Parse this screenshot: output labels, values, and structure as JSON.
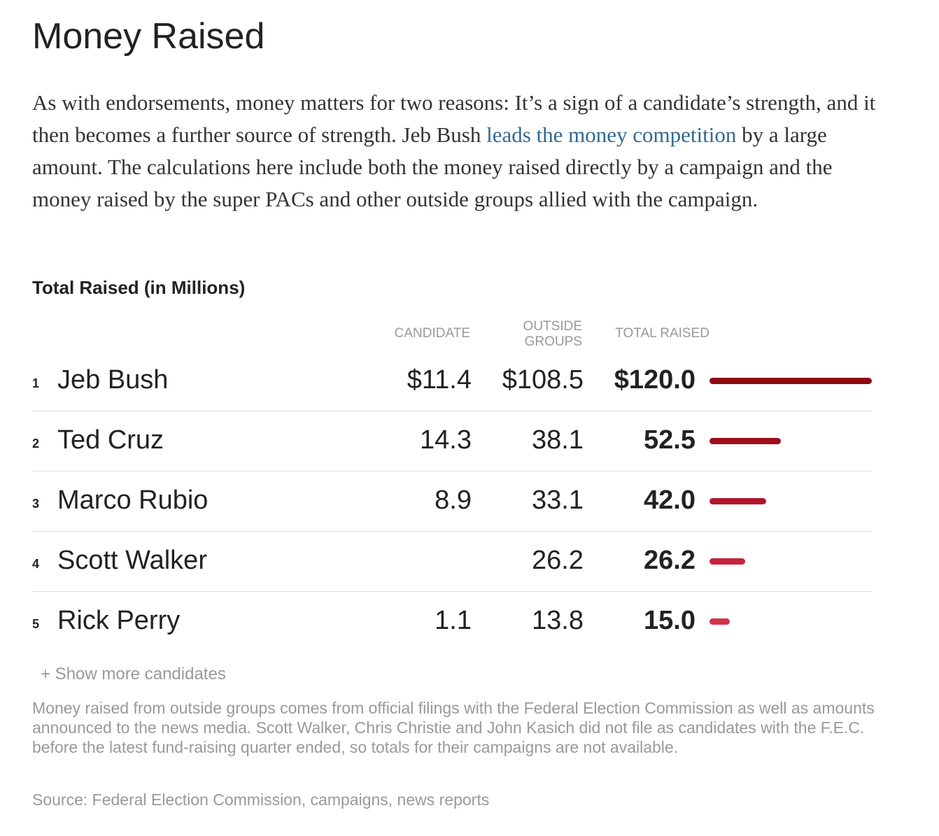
{
  "title": "Money Raised",
  "intro": {
    "before": "As with endorsements, money matters for two reasons: It’s a sign of a candidate’s strength, and it then becomes a further source of strength. Jeb Bush ",
    "link": "leads the money competition",
    "after": " by a large amount. The calculations here include both the money raised directly by a campaign and the money raised by the super PACs and other outside groups allied with the campaign."
  },
  "chart_data": {
    "type": "table",
    "title": "Total Raised (in Millions)",
    "columns": {
      "candidate": "CANDIDATE",
      "outside_line1": "OUTSIDE",
      "outside_line2": "GROUPS",
      "total": "TOTAL RAISED"
    },
    "max_total": 120.0,
    "rows": [
      {
        "rank": "1",
        "name": "Jeb Bush",
        "candidate": "$11.4",
        "outside": "$108.5",
        "total": "$120.0",
        "value": 120.0,
        "color": "#8b0a10"
      },
      {
        "rank": "2",
        "name": "Ted Cruz",
        "candidate": "14.3",
        "outside": "38.1",
        "total": "52.5",
        "value": 52.5,
        "color": "#a00d1b"
      },
      {
        "rank": "3",
        "name": "Marco Rubio",
        "candidate": "8.9",
        "outside": "33.1",
        "total": "42.0",
        "value": 42.0,
        "color": "#b3142a"
      },
      {
        "rank": "4",
        "name": "Scott Walker",
        "candidate": "",
        "outside": "26.2",
        "total": "26.2",
        "value": 26.2,
        "color": "#c4243a"
      },
      {
        "rank": "5",
        "name": "Rick Perry",
        "candidate": "1.1",
        "outside": "13.8",
        "total": "15.0",
        "value": 15.0,
        "color": "#d0354a"
      }
    ]
  },
  "show_more": "+ Show more candidates",
  "note": "Money raised from outside groups comes from official filings with the Federal Election Commission as well as amounts announced to the news media. Scott Walker, Chris Christie and John Kasich did not file as candidates with the F.E.C. before the latest fund-raising quarter ended, so totals for their campaigns are not available.",
  "source": "Source: Federal Election Commission, campaigns, news reports"
}
